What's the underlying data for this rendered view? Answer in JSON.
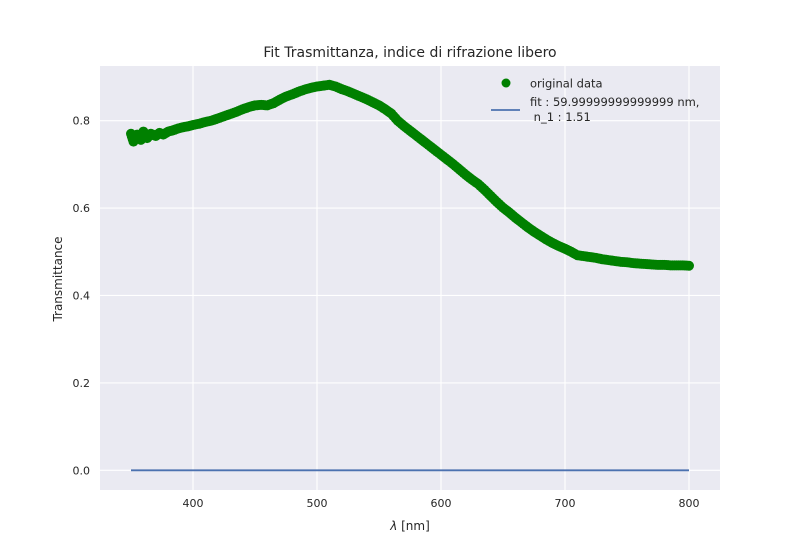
{
  "chart_data": {
    "type": "scatter",
    "title": "Fit Trasmittanza, indice di rifrazione libero",
    "xlabel_symbol": "λ",
    "xlabel_unit": "[nm]",
    "ylabel": "Transmittance",
    "xlim": [
      325,
      825
    ],
    "ylim": [
      -0.045,
      0.925
    ],
    "xticks": [
      400,
      500,
      600,
      700,
      800
    ],
    "yticks": [
      0.0,
      0.2,
      0.4,
      0.6,
      0.8
    ],
    "ytick_labels": [
      "0.0",
      "0.2",
      "0.4",
      "0.6",
      "0.8"
    ],
    "grid": true,
    "legend_position": "upper-right",
    "legend": {
      "data_label": "original data",
      "fit_label_line1": "fit : 59.99999999999999 nm,",
      "fit_label_line2": " n_1 : 1.51"
    },
    "colors": {
      "data": "#008000",
      "fit": "#4c72b0",
      "background": "#eaeaf2",
      "grid": "#ffffff"
    },
    "series": [
      {
        "kind": "scatter",
        "x": [
          350,
          352,
          355,
          358,
          360,
          363,
          366,
          370,
          373,
          376,
          380,
          384,
          388,
          392,
          396,
          400,
          405,
          410,
          415,
          420,
          425,
          430,
          435,
          440,
          445,
          450,
          455,
          460,
          465,
          470,
          475,
          480,
          485,
          490,
          495,
          500,
          505,
          510,
          515,
          520,
          525,
          530,
          535,
          540,
          545,
          550,
          555,
          560,
          565,
          570,
          575,
          580,
          585,
          590,
          595,
          600,
          605,
          610,
          615,
          620,
          625,
          630,
          635,
          640,
          645,
          650,
          655,
          660,
          665,
          670,
          675,
          680,
          685,
          690,
          695,
          700,
          705,
          710,
          715,
          720,
          725,
          730,
          735,
          740,
          745,
          750,
          755,
          760,
          765,
          770,
          775,
          780,
          785,
          790,
          795,
          800
        ],
        "y": [
          0.77,
          0.752,
          0.768,
          0.756,
          0.775,
          0.76,
          0.77,
          0.765,
          0.772,
          0.768,
          0.775,
          0.778,
          0.782,
          0.785,
          0.787,
          0.79,
          0.793,
          0.797,
          0.8,
          0.805,
          0.81,
          0.815,
          0.82,
          0.826,
          0.831,
          0.835,
          0.836,
          0.835,
          0.84,
          0.848,
          0.855,
          0.86,
          0.866,
          0.871,
          0.875,
          0.878,
          0.88,
          0.882,
          0.878,
          0.872,
          0.867,
          0.861,
          0.855,
          0.849,
          0.842,
          0.835,
          0.826,
          0.816,
          0.8,
          0.788,
          0.777,
          0.766,
          0.755,
          0.744,
          0.733,
          0.722,
          0.711,
          0.7,
          0.688,
          0.676,
          0.665,
          0.655,
          0.642,
          0.628,
          0.614,
          0.601,
          0.59,
          0.578,
          0.567,
          0.556,
          0.546,
          0.537,
          0.528,
          0.52,
          0.513,
          0.507,
          0.5,
          0.492,
          0.49,
          0.488,
          0.486,
          0.483,
          0.481,
          0.479,
          0.477,
          0.476,
          0.474,
          0.473,
          0.472,
          0.471,
          0.47,
          0.47,
          0.469,
          0.469,
          0.469,
          0.468
        ]
      },
      {
        "kind": "line",
        "x": [
          350,
          800
        ],
        "y": [
          0.0,
          0.0
        ]
      }
    ]
  }
}
